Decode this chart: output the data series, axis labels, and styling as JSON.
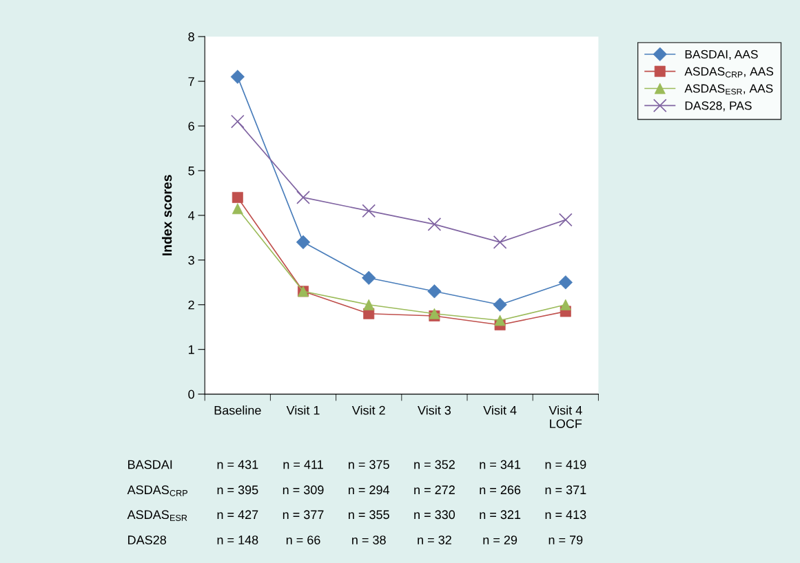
{
  "chart_data": {
    "type": "line",
    "ylabel": "Index scores",
    "categories": [
      "Baseline",
      "Visit 1",
      "Visit 2",
      "Visit 3",
      "Visit 4",
      "Visit 4\nLOCF"
    ],
    "series": [
      {
        "name": "BASDAI, AAS",
        "color": "#4a7ebb",
        "marker": "diamond",
        "values": [
          7.1,
          3.4,
          2.6,
          2.3,
          2.0,
          2.5
        ]
      },
      {
        "name": "ASDAS$_{CRP}$, AAS",
        "color": "#c0504d",
        "marker": "square",
        "values": [
          4.4,
          2.3,
          1.8,
          1.75,
          1.55,
          1.85
        ]
      },
      {
        "name": "ASDAS$_{ESR}$, AAS",
        "color": "#9bbb59",
        "marker": "triangle",
        "values": [
          4.15,
          2.3,
          2.0,
          1.8,
          1.65,
          2.0
        ]
      },
      {
        "name": "DAS28, PAS",
        "color": "#8064a2",
        "marker": "cross",
        "values": [
          6.1,
          4.4,
          4.1,
          3.8,
          3.4,
          3.9
        ]
      }
    ],
    "ylim": [
      0,
      8
    ],
    "yticks": [
      0,
      1,
      2,
      3,
      4,
      5,
      6,
      7,
      8
    ],
    "grid": false,
    "legend": "top right",
    "line_style": "solid",
    "annotations": [
      "BASDAI",
      "n = 431",
      "n = 411",
      "n = 375",
      "n = 352",
      "n = 341",
      "n = 419",
      "ASDAS$_{CRP}$",
      "n = 395",
      "n = 309",
      "n = 294",
      "n = 272",
      "n = 266",
      "n = 371",
      "ASDAS$_{ESR}$",
      "n = 427",
      "n = 377",
      "n = 355",
      "n = 330",
      "n = 321",
      "n = 413",
      "DAS28",
      "n = 148",
      "n = 66",
      "n = 38",
      "n = 32",
      "n = 29",
      "n = 79"
    ]
  }
}
